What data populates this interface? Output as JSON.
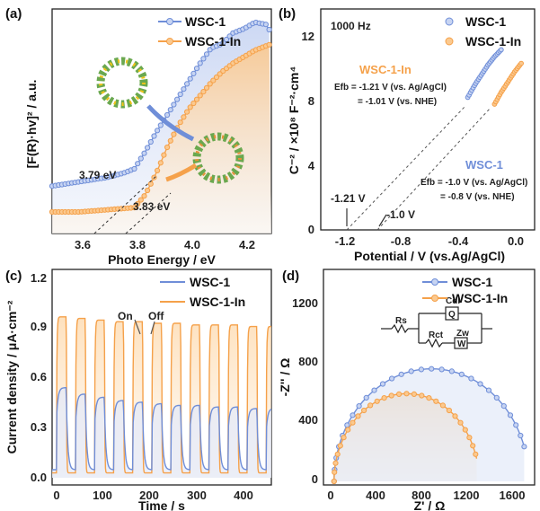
{
  "colors": {
    "blue": "#6f8ed8",
    "orange": "#f5a14a",
    "axis": "#222222"
  },
  "panels": {
    "a": {
      "label": "(a)",
      "xlabel": "Photo Energy / eV",
      "ylabel": "[F(R)·hv]² / a.u.",
      "legend": [
        "WSC-1",
        "WSC-1-In"
      ],
      "ann1": "3.79 eV",
      "ann2": "3.83 eV",
      "xticks": [
        "3.6",
        "3.8",
        "4.0",
        "4.2"
      ]
    },
    "b": {
      "label": "(b)",
      "freq": "1000 Hz",
      "xlabel": "Potential / V (vs.Ag/AgCl)",
      "ylabel": "C⁻² / ×10⁸ F⁻²·cm⁴",
      "legend": [
        "WSC-1",
        "WSC-1-In"
      ],
      "in_title": "WSC-1-In",
      "in_line1": "Efb = -1.21 V (vs. Ag/AgCl)",
      "in_line2": "= -1.01 V (vs. NHE)",
      "w_title": "WSC-1",
      "w_line1": "Efb = -1.0 V (vs. Ag/AgCl)",
      "w_line2": "= -0.8 V (vs. NHE)",
      "mark1": "-1.21 V",
      "mark2": "-1.0 V",
      "xticks": [
        "-1.2",
        "-0.8",
        "-0.4",
        "0.0"
      ],
      "yticks": [
        "0",
        "4",
        "8",
        "12"
      ]
    },
    "c": {
      "label": "(c)",
      "xlabel": "Time / s",
      "ylabel": "Current density / μA·cm⁻²",
      "legend": [
        "WSC-1",
        "WSC-1-In"
      ],
      "on": "On",
      "off": "Off",
      "xticks": [
        "0",
        "100",
        "200",
        "300",
        "400"
      ],
      "yticks": [
        "0.0",
        "0.3",
        "0.6",
        "0.9",
        "1.2"
      ]
    },
    "d": {
      "label": "(d)",
      "xlabel": "Z' / Ω",
      "ylabel": "-Z'' / Ω",
      "legend": [
        "WSC-1",
        "WSC-1-In"
      ],
      "circuit": {
        "rs": "Rs",
        "cdl": "Cdl",
        "q": "Q",
        "rct": "Rct",
        "zw": "Zw",
        "w": "W"
      },
      "xticks": [
        "0",
        "400",
        "800",
        "1200",
        "1600"
      ],
      "yticks": [
        "0",
        "400",
        "800",
        "1200"
      ]
    }
  },
  "chart_data": [
    {
      "type": "scatter",
      "title": "",
      "xlabel": "Photo Energy / eV",
      "ylabel": "[F(R)·hv]² / a.u.",
      "xlim": [
        3.5,
        4.3
      ],
      "series": [
        {
          "name": "WSC-1",
          "x": [
            3.5,
            3.6,
            3.7,
            3.76,
            3.8,
            3.84,
            3.88,
            3.92,
            3.96,
            4.0,
            4.04,
            4.08,
            4.12,
            4.16,
            4.2,
            4.24,
            4.28,
            4.3
          ],
          "y": [
            0.22,
            0.24,
            0.26,
            0.28,
            0.3,
            0.38,
            0.47,
            0.55,
            0.63,
            0.71,
            0.79,
            0.86,
            0.88,
            0.93,
            0.95,
            0.98,
            0.97,
            0.93
          ]
        },
        {
          "name": "WSC-1-In",
          "x": [
            3.5,
            3.6,
            3.7,
            3.8,
            3.84,
            3.88,
            3.92,
            3.96,
            4.0,
            4.04,
            4.08,
            4.12,
            4.16,
            4.2,
            4.24,
            4.28,
            4.3
          ],
          "y": [
            0.1,
            0.1,
            0.11,
            0.12,
            0.18,
            0.28,
            0.4,
            0.5,
            0.58,
            0.64,
            0.7,
            0.75,
            0.79,
            0.82,
            0.85,
            0.87,
            0.88
          ]
        }
      ],
      "annotations": [
        "3.79 eV",
        "3.83 eV"
      ]
    },
    {
      "type": "scatter",
      "title": "1000 Hz",
      "xlabel": "Potential / V (vs.Ag/AgCl)",
      "ylabel": "C⁻² / ×10⁸ F⁻²·cm⁴",
      "xlim": [
        -1.5,
        0.1
      ],
      "ylim": [
        0,
        13
      ],
      "series": [
        {
          "name": "WSC-1",
          "x": [
            -0.4,
            -0.35,
            -0.3,
            -0.25,
            -0.2,
            -0.15
          ],
          "y": [
            7.8,
            8.5,
            9.1,
            9.7,
            10.2,
            10.6
          ]
        },
        {
          "name": "WSC-1-In",
          "x": [
            -0.2,
            -0.15,
            -0.1,
            -0.05,
            0.0
          ],
          "y": [
            7.4,
            8.1,
            8.7,
            9.3,
            9.8
          ]
        }
      ],
      "intercepts": [
        -1.21,
        -1.0
      ]
    },
    {
      "type": "line",
      "title": "",
      "xlabel": "Time / s",
      "ylabel": "Current density / μA·cm⁻²",
      "xlim": [
        0,
        460
      ],
      "ylim": [
        0,
        1.25
      ],
      "series": [
        {
          "name": "WSC-1",
          "on_times": [
            10,
            50,
            90,
            130,
            170,
            210,
            250,
            290,
            330,
            370,
            410,
            450
          ],
          "peaks": [
            0.56,
            0.52,
            0.5,
            0.48,
            0.47,
            0.46,
            0.45,
            0.45,
            0.44,
            0.44,
            0.43,
            0.43
          ],
          "baseline": 0.05
        },
        {
          "name": "WSC-1-In",
          "on_times": [
            10,
            50,
            90,
            130,
            170,
            210,
            250,
            290,
            330,
            370,
            410,
            450
          ],
          "peaks": [
            1.0,
            0.99,
            0.98,
            0.97,
            0.97,
            0.96,
            0.96,
            0.95,
            0.95,
            0.95,
            0.94,
            0.94
          ],
          "baseline": 0.03
        }
      ]
    },
    {
      "type": "scatter",
      "title": "",
      "xlabel": "Z' / Ω",
      "ylabel": "-Z'' / Ω",
      "xlim": [
        0,
        1800
      ],
      "ylim": [
        0,
        1450
      ],
      "series": [
        {
          "name": "WSC-1",
          "center": 890,
          "radius": 860,
          "arc_height": 770,
          "start": 30,
          "end": 1720
        },
        {
          "name": "WSC-1-In",
          "center": 670,
          "radius": 640,
          "arc_height": 600,
          "start": 30,
          "end": 1290
        }
      ]
    }
  ]
}
